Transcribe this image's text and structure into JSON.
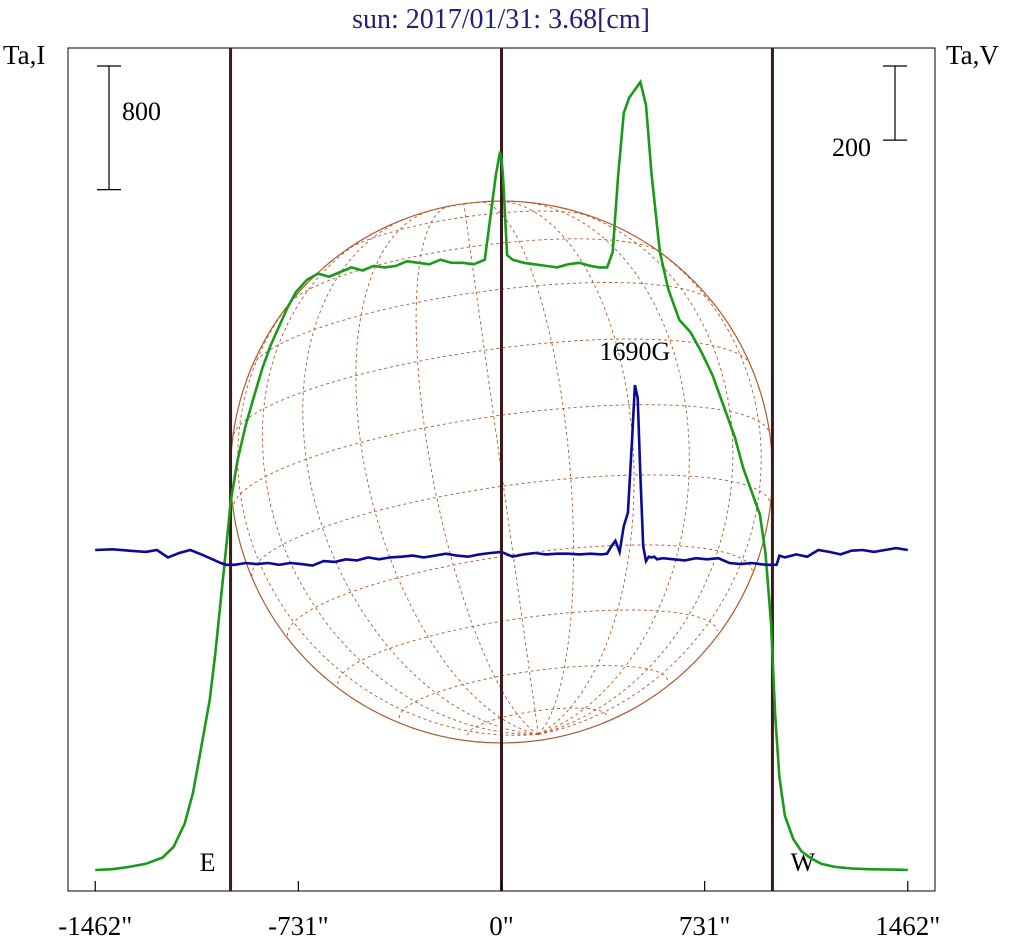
{
  "chart_data": {
    "type": "line",
    "title": "sun: 2017/01/31: 3.68[cm]",
    "ylabel_left": "Ta,I",
    "ylabel_right": "Ta,V",
    "xlim": [
      -1560,
      1560
    ],
    "x_ticks": [
      {
        "value": -1462,
        "label": "-1462\""
      },
      {
        "value": -731,
        "label": "-731\""
      },
      {
        "value": 0,
        "label": "0\""
      },
      {
        "value": 731,
        "label": "731\""
      },
      {
        "value": 1462,
        "label": "1462\""
      }
    ],
    "scale_bars": {
      "left": {
        "label": "800",
        "value": 800
      },
      "right": {
        "label": "200",
        "value": 200
      }
    },
    "limbs": [
      {
        "x": -975,
        "label": "E"
      },
      {
        "x": 0,
        "label": ""
      },
      {
        "x": 975,
        "label": "W"
      }
    ],
    "annotation": {
      "text": "1690G",
      "x": 504
    },
    "solar_disk": {
      "radius": 975
    },
    "colors": {
      "intensity": "#1a9a1a",
      "polarization": "#0a0a96",
      "title": "#20207a",
      "limb_lines": "#3a1a1a",
      "disk": "#b05a30"
    },
    "series": [
      {
        "key": "I",
        "x": [
          -1462,
          -1400,
          -1340,
          -1280,
          -1220,
          -1180,
          -1140,
          -1110,
          -1080,
          -1050,
          -1030,
          -1010,
          -990,
          -975,
          -950,
          -920,
          -890,
          -860,
          -830,
          -800,
          -770,
          -740,
          -700,
          -660,
          -620,
          -580,
          -540,
          -500,
          -460,
          -420,
          -380,
          -340,
          -300,
          -260,
          -220,
          -180,
          -140,
          -100,
          -60,
          -20,
          -5,
          0,
          5,
          20,
          40,
          80,
          120,
          160,
          200,
          240,
          280,
          320,
          350,
          380,
          400,
          420,
          440,
          460,
          480,
          500,
          520,
          540,
          570,
          600,
          640,
          680,
          720,
          760,
          800,
          840,
          870,
          900,
          930,
          950,
          970,
          985,
          1000,
          1020,
          1050,
          1080,
          1110,
          1150,
          1200,
          1260,
          1320,
          1380,
          1430,
          1462
        ],
        "values": [
          0,
          5,
          20,
          40,
          80,
          150,
          300,
          500,
          800,
          1100,
          1400,
          1750,
          2100,
          2380,
          2650,
          2880,
          3070,
          3250,
          3400,
          3520,
          3640,
          3740,
          3820,
          3860,
          3840,
          3870,
          3900,
          3880,
          3910,
          3900,
          3910,
          3940,
          3930,
          3920,
          3950,
          3930,
          3930,
          3920,
          3950,
          4500,
          4650,
          4600,
          4500,
          3980,
          3950,
          3930,
          3920,
          3910,
          3900,
          3920,
          3930,
          3910,
          3900,
          3900,
          4000,
          4500,
          4900,
          5000,
          5050,
          5100,
          4950,
          4500,
          4000,
          3760,
          3560,
          3480,
          3350,
          3200,
          3000,
          2800,
          2600,
          2450,
          2300,
          2050,
          1600,
          1000,
          600,
          350,
          200,
          120,
          80,
          40,
          20,
          10,
          5,
          3,
          2,
          0
        ]
      },
      {
        "key": "V",
        "x": [
          -1462,
          -1400,
          -1340,
          -1280,
          -1240,
          -1200,
          -1160,
          -1120,
          -1080,
          -1040,
          -1010,
          -990,
          -975,
          -960,
          -920,
          -880,
          -840,
          -800,
          -760,
          -720,
          -680,
          -640,
          -600,
          -560,
          -520,
          -480,
          -440,
          -400,
          -360,
          -320,
          -280,
          -240,
          -200,
          -160,
          -120,
          -80,
          -40,
          0,
          40,
          80,
          120,
          160,
          200,
          240,
          280,
          320,
          360,
          380,
          395,
          410,
          425,
          440,
          455,
          470,
          480,
          490,
          500,
          510,
          520,
          530,
          540,
          550,
          560,
          580,
          620,
          660,
          700,
          740,
          780,
          820,
          860,
          900,
          930,
          955,
          975,
          990,
          1000,
          1020,
          1060,
          1100,
          1140,
          1180,
          1220,
          1260,
          1300,
          1340,
          1380,
          1420,
          1462
        ],
        "values": [
          0,
          2,
          -2,
          -5,
          0,
          -20,
          -8,
          0,
          -12,
          -25,
          -35,
          -40,
          -40,
          -40,
          -35,
          -38,
          -35,
          -40,
          -35,
          -38,
          -42,
          -30,
          -32,
          -25,
          -28,
          -20,
          -25,
          -20,
          -18,
          -15,
          -20,
          -15,
          -10,
          -15,
          -18,
          -12,
          -8,
          -5,
          -18,
          -12,
          -8,
          -12,
          -10,
          -10,
          -12,
          -10,
          -12,
          -10,
          10,
          25,
          -5,
          65,
          100,
          300,
          445,
          410,
          200,
          10,
          -30,
          -18,
          -20,
          -18,
          -25,
          -22,
          -25,
          -28,
          -22,
          -25,
          -22,
          -35,
          -38,
          -35,
          -38,
          -40,
          -40,
          -40,
          -15,
          -20,
          -12,
          -18,
          0,
          -5,
          -12,
          -2,
          0,
          -5,
          0,
          5,
          0
        ]
      }
    ]
  }
}
